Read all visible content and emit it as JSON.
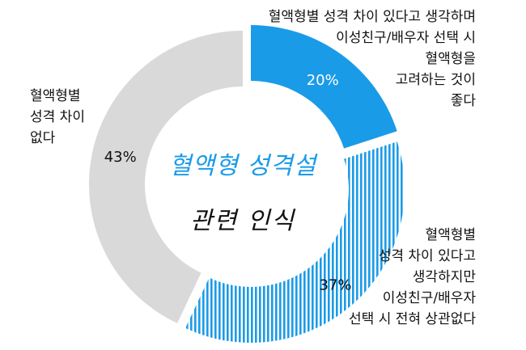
{
  "chart_data": {
    "type": "pie",
    "title": "혈액형 성격설",
    "subtitle": "관련 인식",
    "slices": [
      {
        "label_lines": [
          "혈액형별 성격 차이 있다고 생각하며",
          "이성친구/배우자 선택 시",
          "혈액형을",
          "고려하는 것이",
          "좋다"
        ],
        "value": 20,
        "value_label": "20%",
        "color": "#1a9be8",
        "pattern": "solid"
      },
      {
        "label_lines": [
          "혈액형별",
          "성격 차이 있다고",
          "생각하지만",
          "이성친구/배우자",
          "선택 시 전혀 상관없다"
        ],
        "value": 37,
        "value_label": "37%",
        "color": "#1a9be8",
        "pattern": "vertical-stripes"
      },
      {
        "label_lines": [
          "혈액형별",
          "성격 차이",
          "없다"
        ],
        "value": 43,
        "value_label": "43%",
        "color": "#d9d9d9",
        "pattern": "solid"
      }
    ]
  }
}
